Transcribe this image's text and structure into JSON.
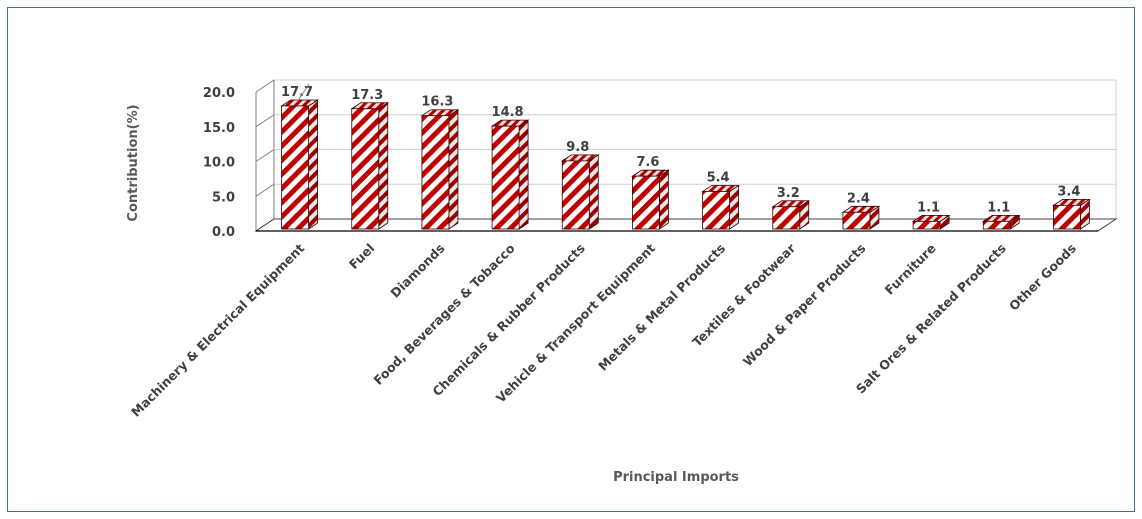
{
  "chart_data": {
    "type": "bar",
    "variant": "3d-column",
    "title": "",
    "xlabel": "Principal Imports",
    "ylabel": "Contribution(%)",
    "ylim": [
      0,
      20
    ],
    "yticks": [
      "0.0",
      "5.0",
      "10.0",
      "15.0",
      "20.0"
    ],
    "categories": [
      "Machinery & Electrical Equipment",
      "Fuel",
      "Diamonds",
      "Food, Beverages & Tobacco",
      "Chemicals & Rubber Products",
      "Vehicle & Transport Equipment",
      "Metals & Metal Products",
      "Textiles & Footwear",
      "Wood & Paper Products",
      "Furniture",
      "Salt Ores & Related Products",
      "Other Goods"
    ],
    "values": [
      17.7,
      17.3,
      16.3,
      14.8,
      9.8,
      7.6,
      5.4,
      3.2,
      2.4,
      1.1,
      1.1,
      3.4
    ],
    "data_labels": [
      "17.7",
      "17.3",
      "16.3",
      "14.8",
      "9.8",
      "7.6",
      "5.4",
      "3.2",
      "2.4",
      "1.1",
      "1.1",
      "3.4"
    ],
    "grid": true,
    "legend": "none",
    "bar_pattern": "red-white diagonal stripes",
    "colors": {
      "bar_stripe": "#c00000",
      "bar_base": "#ffffff",
      "grid": "#d9d9d9",
      "frame": "#4a6fa5"
    }
  }
}
